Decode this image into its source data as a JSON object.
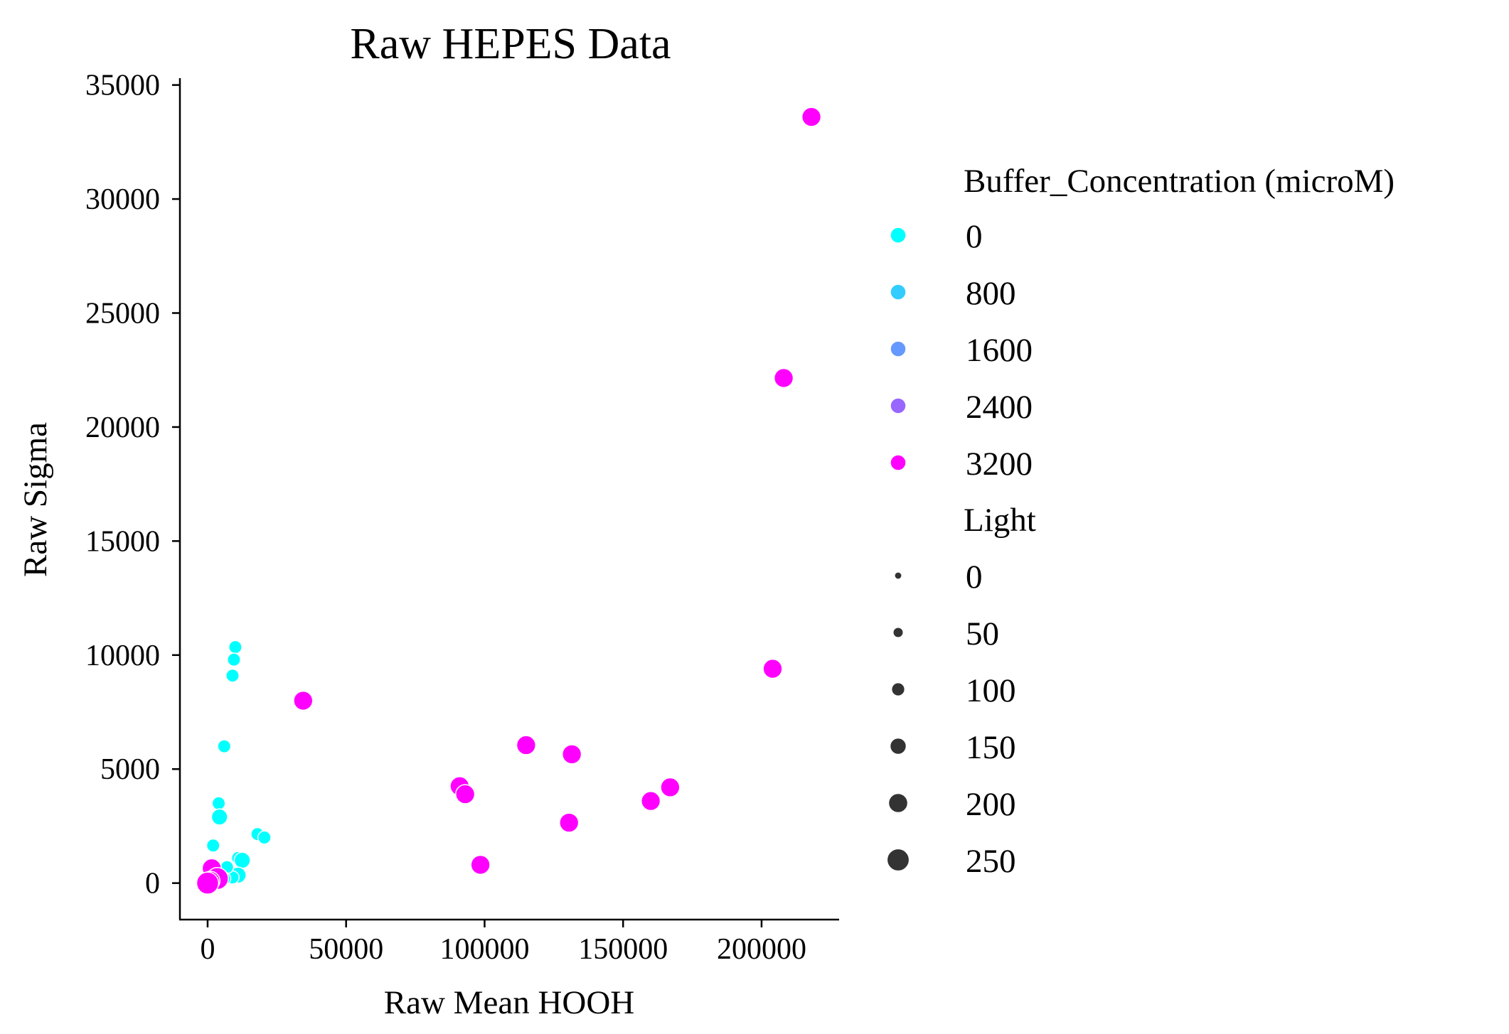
{
  "chart_data": {
    "type": "scatter",
    "title": "Raw HEPES Data",
    "xlabel": "Raw Mean HOOH",
    "ylabel": "Raw Sigma",
    "xlim": [
      -10000,
      228000
    ],
    "ylim": [
      -1600,
      35300
    ],
    "xticks": [
      "0",
      "50000",
      "100000",
      "150000",
      "200000"
    ],
    "yticks": [
      "0",
      "5000",
      "10000",
      "15000",
      "20000",
      "25000",
      "30000",
      "35000"
    ],
    "grid": false,
    "legend_position": "right",
    "legend": {
      "hue_title": "Buffer_Concentration (microM)",
      "hue_entries": [
        {
          "label": "0",
          "color": "#00ffff"
        },
        {
          "label": "800",
          "color": "#33ccff"
        },
        {
          "label": "1600",
          "color": "#6699ff"
        },
        {
          "label": "2400",
          "color": "#9966ff"
        },
        {
          "label": "3200",
          "color": "#ff00ff"
        }
      ],
      "size_title": "Light",
      "size_entries": [
        {
          "label": "0",
          "size": 0
        },
        {
          "label": "50",
          "size": 50
        },
        {
          "label": "100",
          "size": 100
        },
        {
          "label": "150",
          "size": 150
        },
        {
          "label": "200",
          "size": 200
        },
        {
          "label": "250",
          "size": 250
        }
      ]
    },
    "series": [
      {
        "buffer": "0",
        "color": "#00ffff",
        "points": [
          {
            "x": 10000,
            "y": 10350,
            "light": 100
          },
          {
            "x": 9500,
            "y": 9800,
            "light": 100
          },
          {
            "x": 9000,
            "y": 9100,
            "light": 100
          },
          {
            "x": 6000,
            "y": 6000,
            "light": 100
          },
          {
            "x": 4000,
            "y": 3500,
            "light": 100
          },
          {
            "x": 4300,
            "y": 2900,
            "light": 150
          },
          {
            "x": 2000,
            "y": 1650,
            "light": 100
          },
          {
            "x": 18000,
            "y": 2150,
            "light": 100
          },
          {
            "x": 20500,
            "y": 2000,
            "light": 100
          },
          {
            "x": 11000,
            "y": 1100,
            "light": 100
          },
          {
            "x": 12500,
            "y": 1000,
            "light": 150
          },
          {
            "x": 11000,
            "y": 350,
            "light": 150
          },
          {
            "x": 9000,
            "y": 250,
            "light": 100
          },
          {
            "x": 7000,
            "y": 700,
            "light": 100
          },
          {
            "x": 6000,
            "y": 200,
            "light": 100
          },
          {
            "x": 4500,
            "y": 50,
            "light": 100
          },
          {
            "x": 3000,
            "y": 450,
            "light": 100
          },
          {
            "x": 1500,
            "y": 100,
            "light": 100
          }
        ]
      },
      {
        "buffer": "3200",
        "color": "#ff00ff",
        "points": [
          {
            "x": 218000,
            "y": 33600,
            "light": 200
          },
          {
            "x": 208000,
            "y": 22150,
            "light": 200
          },
          {
            "x": 204000,
            "y": 9400,
            "light": 200
          },
          {
            "x": 34500,
            "y": 8000,
            "light": 200
          },
          {
            "x": 115000,
            "y": 6050,
            "light": 200
          },
          {
            "x": 131500,
            "y": 5650,
            "light": 200
          },
          {
            "x": 167000,
            "y": 4200,
            "light": 200
          },
          {
            "x": 160000,
            "y": 3600,
            "light": 200
          },
          {
            "x": 91000,
            "y": 4250,
            "light": 200
          },
          {
            "x": 93000,
            "y": 3900,
            "light": 200
          },
          {
            "x": 130500,
            "y": 2650,
            "light": 200
          },
          {
            "x": 98500,
            "y": 800,
            "light": 200
          },
          {
            "x": 1500,
            "y": 650,
            "light": 200
          },
          {
            "x": 3500,
            "y": 200,
            "light": 250
          },
          {
            "x": 1000,
            "y": 100,
            "light": 200
          },
          {
            "x": 0,
            "y": 0,
            "light": 250
          }
        ]
      }
    ]
  }
}
